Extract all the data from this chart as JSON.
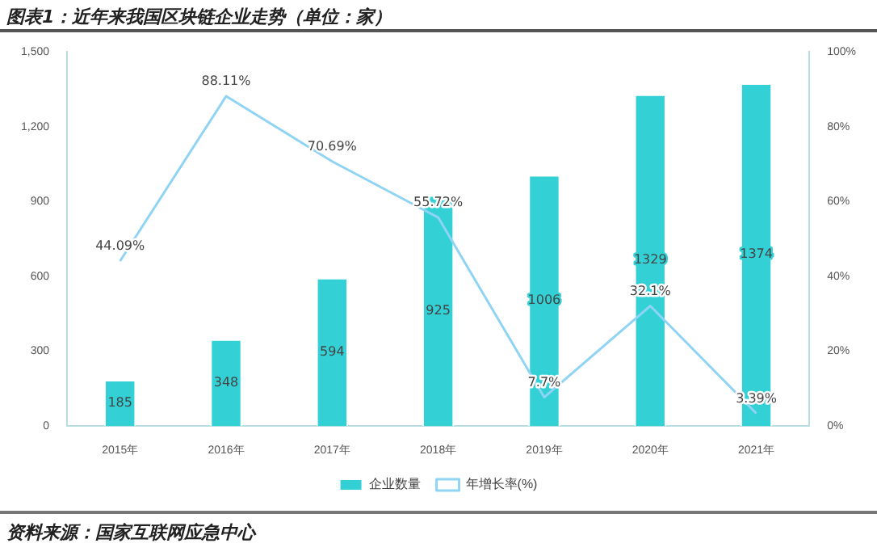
{
  "chart_data": {
    "type": "bar",
    "title": "图表1：近年来我国区块链企业走势（单位：家）",
    "categories": [
      "2015年",
      "2016年",
      "2017年",
      "2018年",
      "2019年",
      "2020年",
      "2021年"
    ],
    "series": [
      {
        "name": "企业数量",
        "color": "#33d1d6",
        "values": [
          185,
          348,
          594,
          925,
          1006,
          1329,
          1374
        ]
      },
      {
        "name": "年增长率(%)",
        "type": "line",
        "axis": "y2",
        "color": "#8fd3f5",
        "values": [
          44.09,
          88.11,
          70.69,
          55.72,
          7.7,
          32.1,
          3.39
        ],
        "value_labels": [
          "44.09%",
          "88.11%",
          "70.69%",
          "55.72%",
          "7.7%",
          "32.1%",
          "3.39%"
        ]
      }
    ],
    "data_labels": true,
    "ylim": [
      0,
      1500
    ],
    "yticks": [
      {
        "value": 0,
        "label": "0"
      },
      {
        "value": 300,
        "label": "300"
      },
      {
        "value": 600,
        "label": "600"
      },
      {
        "value": 900,
        "label": "900"
      },
      {
        "value": 1200,
        "label": "1,200"
      },
      {
        "value": 1500,
        "label": "1,500"
      }
    ],
    "y2lim": [
      0,
      100
    ],
    "y2ticks": [
      {
        "value": 0,
        "label": "0%"
      },
      {
        "value": 20,
        "label": "20%"
      },
      {
        "value": 40,
        "label": "40%"
      },
      {
        "value": 60,
        "label": "60%"
      },
      {
        "value": 80,
        "label": "80%"
      },
      {
        "value": 100,
        "label": "100%"
      }
    ],
    "grid": false,
    "legend": "bottom",
    "marker": "none",
    "annotations": [
      "资料来源：国家互联网应急中心"
    ]
  }
}
